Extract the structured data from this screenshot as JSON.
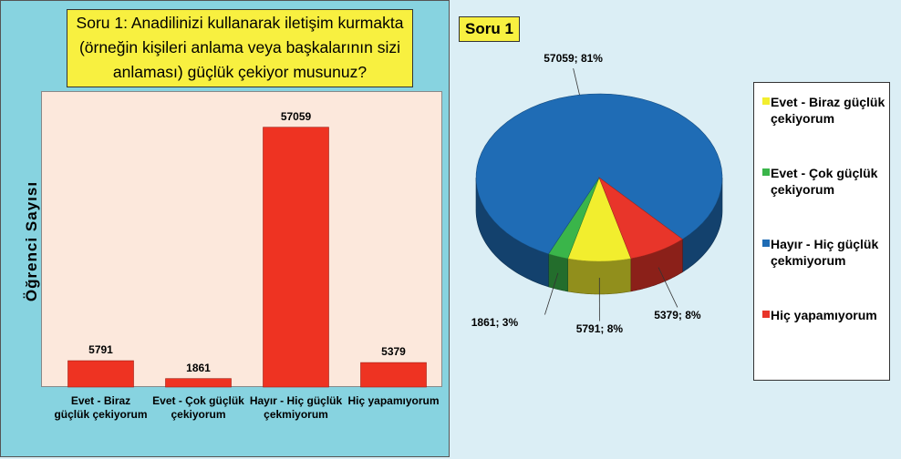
{
  "chart_data": [
    {
      "type": "bar",
      "title": "Soru 1: Anadilinizi kullanarak iletişim kurmakta (örneğin kişileri anlama veya başkalarının sizi anlaması) güçlük çekiyor musunuz?",
      "y_label": "Öğrenci Sayısı",
      "categories": [
        "Evet - Biraz güçlük çekiyorum",
        "Evet - Çok güçlük çekiyorum",
        "Hayır - Hiç güçlük çekmiyorum",
        "Hiç yapamıyorum"
      ],
      "values": [
        5791,
        1861,
        57059,
        5379
      ],
      "color": "#ee3322",
      "ylim": [
        0,
        65000
      ],
      "grid": false
    },
    {
      "type": "pie",
      "title": "Soru 1",
      "categories": [
        "Evet - Biraz güçlük çekiyorum",
        "Evet - Çok güçlük çekiyorum",
        "Hayır - Hiç güçlük çekmiyorum",
        "Hiç yapamıyorum"
      ],
      "values": [
        5791,
        1861,
        57059,
        5379
      ],
      "value_labels": [
        "5791; 8%",
        "1861; 3%",
        "57059; 81%",
        "5379; 8%"
      ],
      "colors": [
        "#f2ee2e",
        "#3ab54a",
        "#1f6cb5",
        "#e8352a"
      ],
      "legend": "right"
    }
  ]
}
